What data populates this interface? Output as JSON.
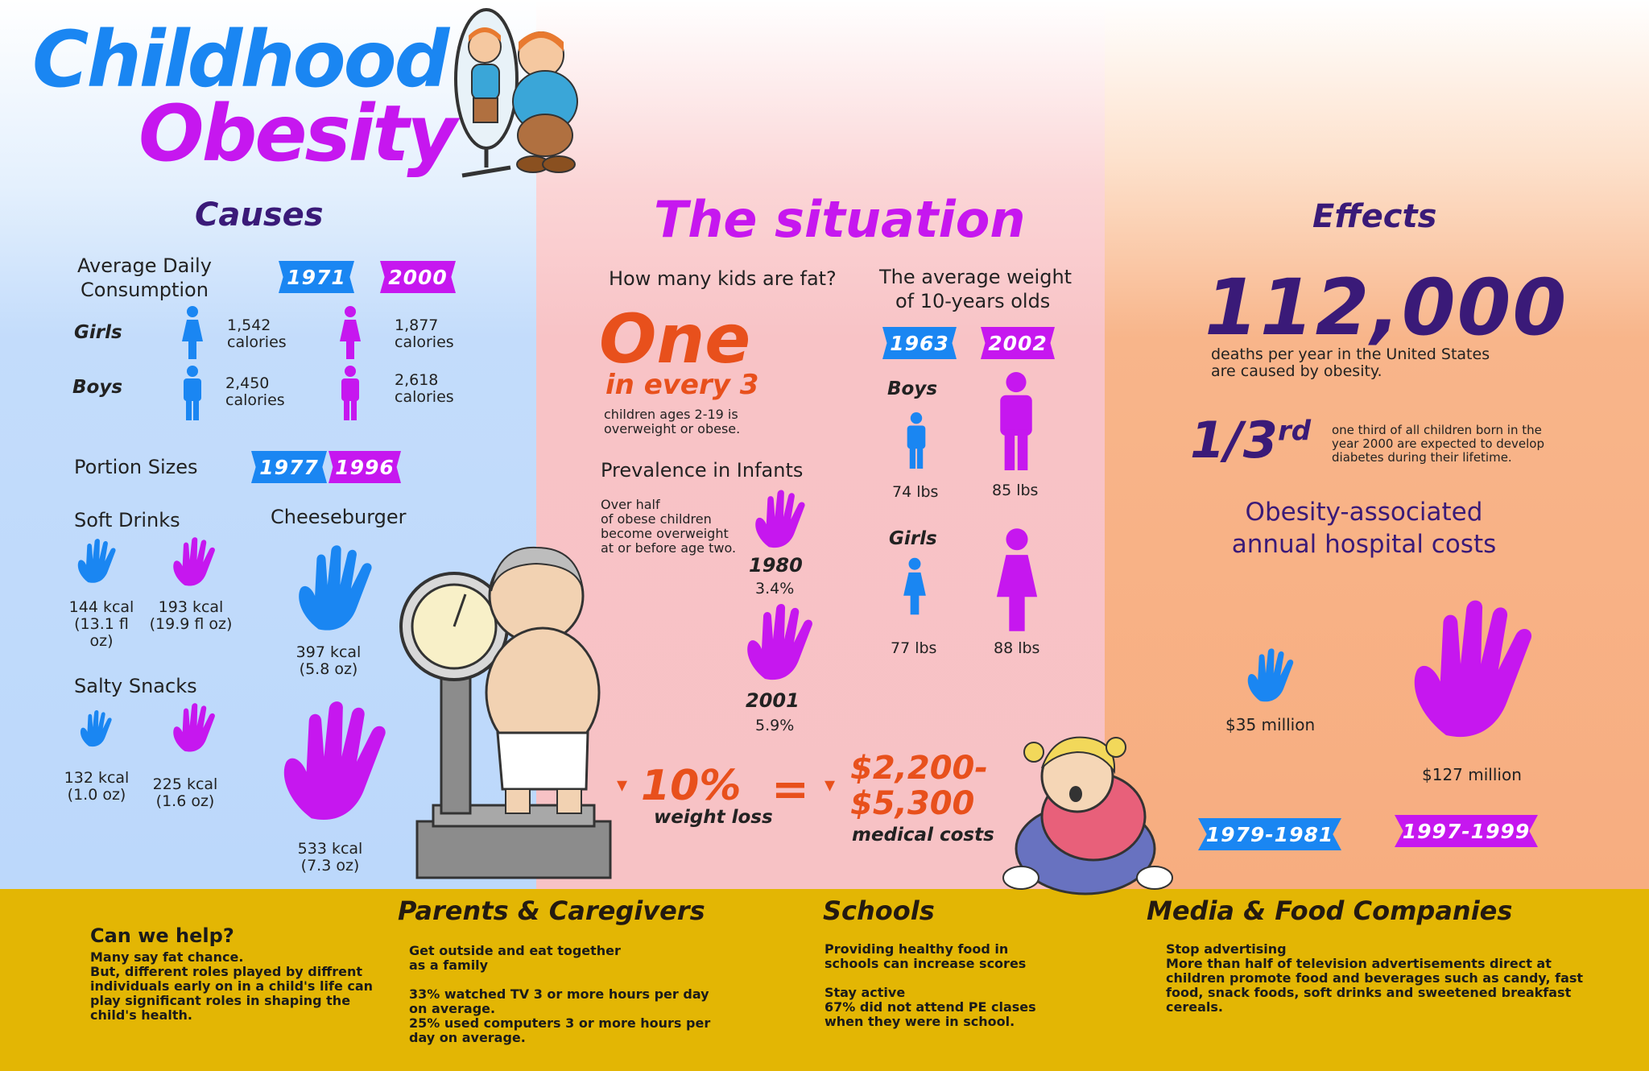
{
  "title": {
    "line1": "Childhood",
    "line2": "Obesity"
  },
  "colors": {
    "blue": "#1a86f2",
    "purple": "#c617ef",
    "orange": "#e8501c",
    "dark": "#3a1a78",
    "mustard": "#e3b604"
  },
  "causes": {
    "heading": "Causes",
    "consumption_label_1": "Average Daily",
    "consumption_label_2": "Consumption",
    "year_a": "1971",
    "year_b": "2000",
    "girls_label": "Girls",
    "boys_label": "Boys",
    "girls_a_num": "1,542",
    "girls_a_unit": "calories",
    "girls_b_num": "1,877",
    "girls_b_unit": "calories",
    "boys_a_num": "2,450",
    "boys_a_unit": "calories",
    "boys_b_num": "2,618",
    "boys_b_unit": "calories",
    "portion_label": "Portion Sizes",
    "portion_year_a": "1977",
    "portion_year_b": "1996",
    "soft_drinks_label": "Soft Drinks",
    "cheeseburger_label": "Cheeseburger",
    "salty_label": "Salty Snacks",
    "sd_a_1": "144 kcal",
    "sd_a_2": "(13.1 fl oz)",
    "sd_b_1": "193 kcal",
    "sd_b_2": "(19.9 fl oz)",
    "cb_a_1": "397 kcal",
    "cb_a_2": "(5.8 oz)",
    "cb_b_1": "533 kcal",
    "cb_b_2": "(7.3 oz)",
    "ss_a_1": "132 kcal",
    "ss_a_2": "(1.0 oz)",
    "ss_b_1": "225 kcal",
    "ss_b_2": "(1.6 oz)"
  },
  "situation": {
    "heading": "The situation",
    "how_many": "How many kids are fat?",
    "one": "One",
    "in_every": "in every 3",
    "children_1": "children ages 2-19 is",
    "children_2": "overweight or obese.",
    "prevalence": "Prevalence in Infants",
    "over_1": "Over half",
    "over_2": "of obese children",
    "over_3": "become overweight",
    "over_4": "at or before age two.",
    "y1980": "1980",
    "p1980": "3.4%",
    "y2001": "2001",
    "p2001": "5.9%",
    "avg_weight_1": "The average weight",
    "avg_weight_2": "of 10-years olds",
    "year_a": "1963",
    "year_b": "2002",
    "boys_label": "Boys",
    "girls_label": "Girls",
    "boys_a": "74 lbs",
    "boys_b": "85 lbs",
    "girls_a": "77 lbs",
    "girls_b": "88 lbs",
    "ten_pct": "10%",
    "weight_loss": "weight loss",
    "equals": "=",
    "cost_1": "$2,200-",
    "cost_2": "$5,300",
    "medical_costs": "medical costs",
    "arrow": "▾"
  },
  "effects": {
    "heading": "Effects",
    "big_number": "112,000",
    "deaths_1": "deaths per year in the United States",
    "deaths_2": "are caused by obesity.",
    "third": "1/3",
    "third_sup": "rd",
    "third_1": "one third of all children born in the",
    "third_2": "year 2000 are expected to develop",
    "third_3": "diabetes during their lifetime.",
    "hosp_1": "Obesity-associated",
    "hosp_2": "annual hospital costs",
    "cost_a": "$35 million",
    "cost_b": "$127 million",
    "period_a": "1979-1981",
    "period_b": "1997-1999"
  },
  "bottom": {
    "help_head": "Can we help?",
    "help_1": "Many say fat chance.",
    "help_2": "But, different roles played by diffrent",
    "help_3": "individuals early on in a child's life can",
    "help_4": "play significant roles in shaping the",
    "help_5": "child's health.",
    "parents_head": "Parents & Caregivers",
    "parents_1": "Get outside and eat together",
    "parents_2": "as a family",
    "parents_3": "33% watched TV 3 or more hours per day",
    "parents_4": "on average.",
    "parents_5": "25% used computers 3 or more hours per",
    "parents_6": "day on average.",
    "schools_head": "Schools",
    "schools_1": "Providing healthy food in",
    "schools_2": "schools can increase scores",
    "schools_3": "Stay active",
    "schools_4": "67% did not attend PE clases",
    "schools_5": "when they were in school.",
    "media_head": "Media & Food Companies",
    "media_1": "Stop advertising",
    "media_2": "More than half of television advertisements direct at",
    "media_3": "children promote food and beverages such as candy, fast",
    "media_4": "food, snack foods, soft drinks and sweetened breakfast",
    "media_5": "cereals."
  }
}
